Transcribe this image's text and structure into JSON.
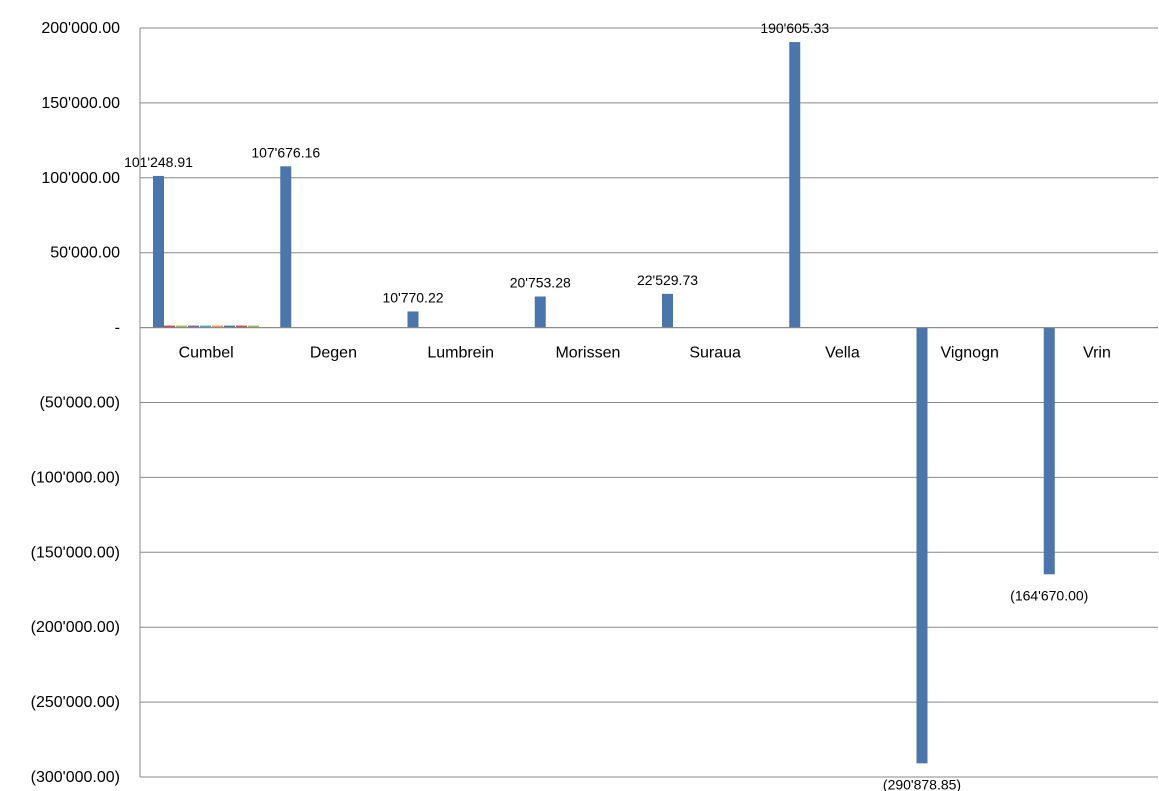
{
  "chart_data": {
    "type": "bar",
    "categories": [
      "Cumbel",
      "Degen",
      "Lumbrein",
      "Morissen",
      "Suraua",
      "Vella",
      "Vignogn",
      "Vrin"
    ],
    "values": [
      101248.91,
      107676.16,
      10770.22,
      20753.28,
      22529.73,
      190605.33,
      -290878.85,
      -164670.0
    ],
    "data_labels": [
      "101'248.91",
      "107'676.16",
      "10'770.22",
      "20'753.28",
      "22'529.73",
      "190'605.33",
      "(290'878.85)",
      "(164'670.00)"
    ],
    "yticks": [
      200000,
      150000,
      100000,
      50000,
      0,
      -50000,
      -100000,
      -150000,
      -200000,
      -250000,
      -300000
    ],
    "ytick_labels": [
      "200'000.00",
      "150'000.00",
      "100'000.00",
      "50'000.00",
      "-",
      "(50'000.00)",
      "(100'000.00)",
      "(150'000.00)",
      "(200'000.00)",
      "(250'000.00)",
      "(300'000.00)"
    ],
    "ylim": [
      -300000,
      200000
    ],
    "grid": true,
    "colors": {
      "bar": "#4a76ac",
      "grid": "#888888",
      "axis": "#888888",
      "text": "#000000"
    }
  }
}
